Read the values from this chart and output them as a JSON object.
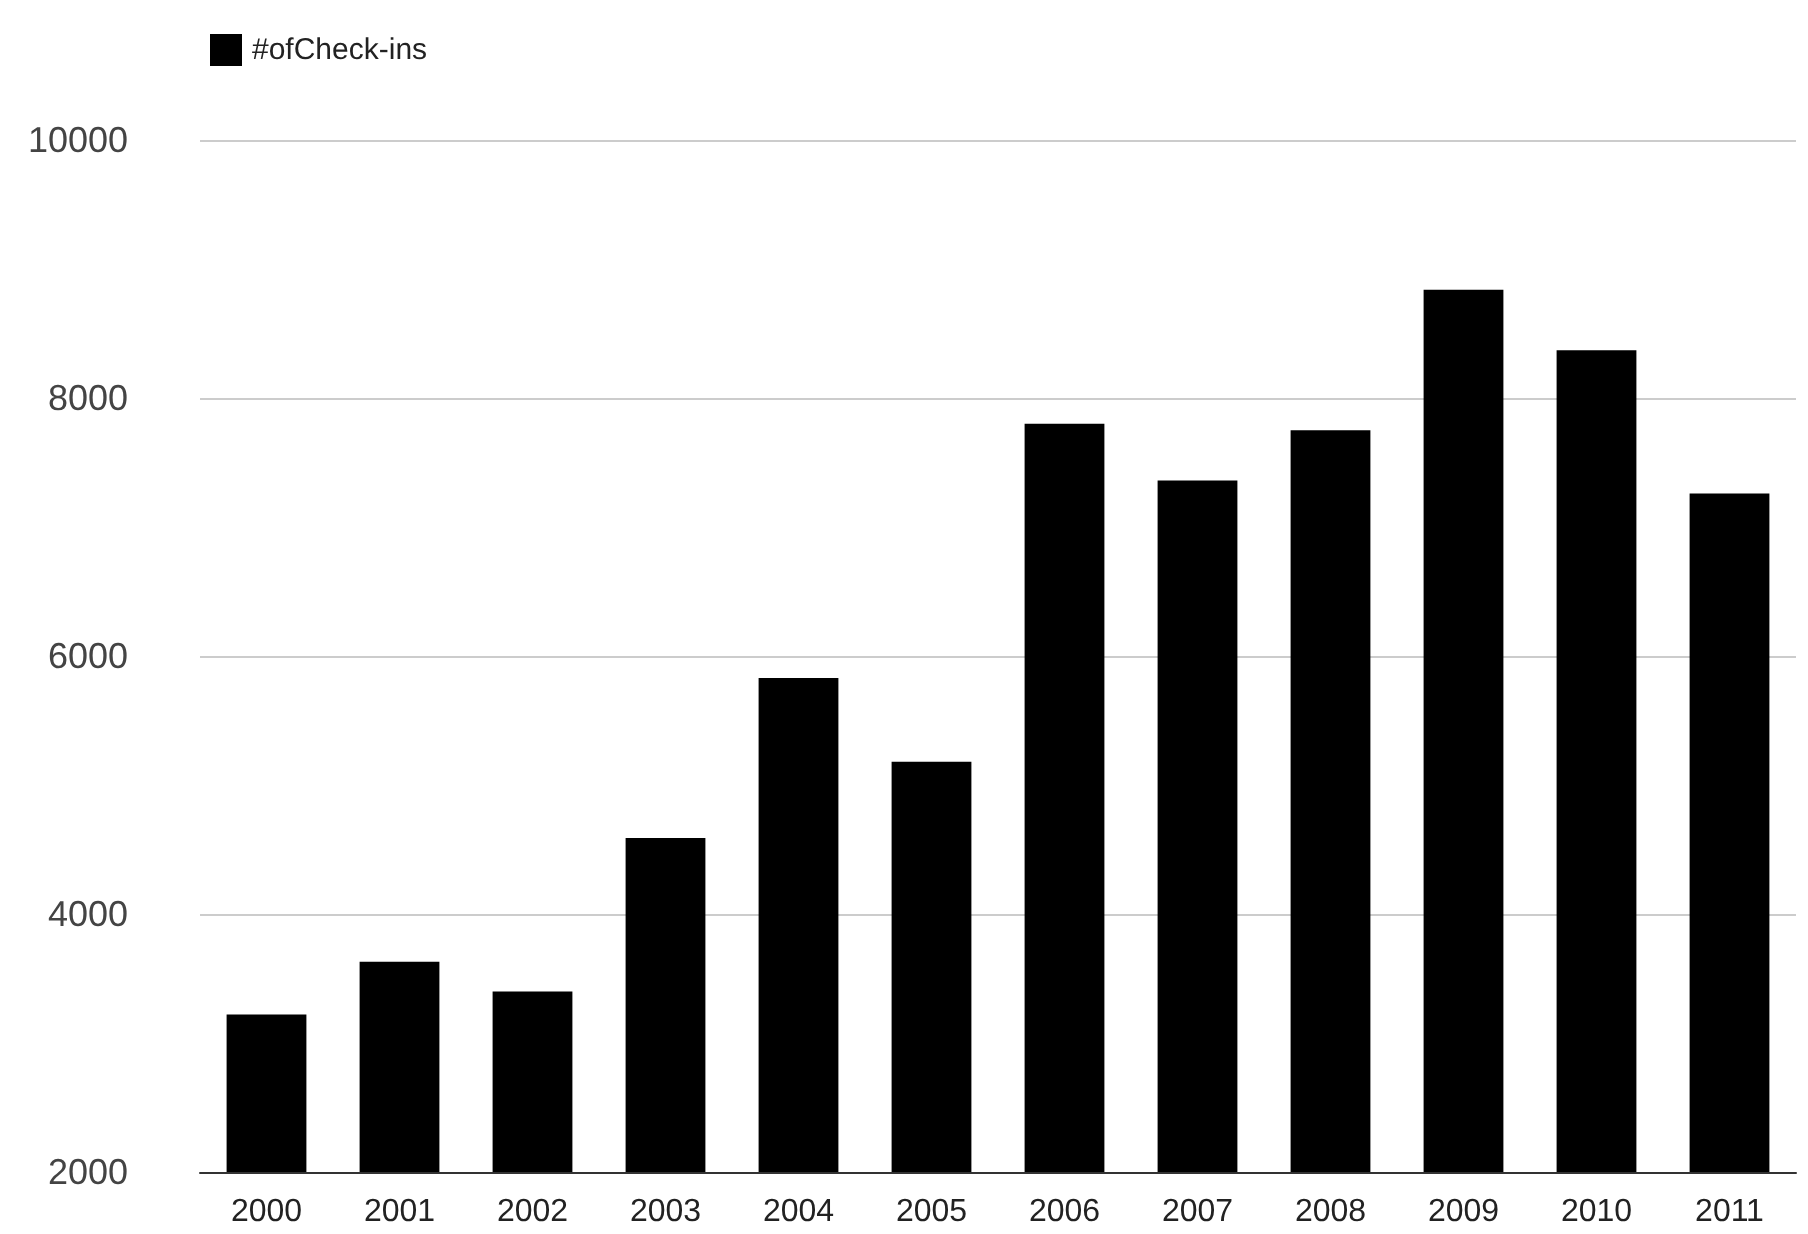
{
  "chart_data": {
    "type": "bar",
    "categories": [
      "2000",
      "2001",
      "2002",
      "2003",
      "2004",
      "2005",
      "2006",
      "2007",
      "2008",
      "2009",
      "2010",
      "2011"
    ],
    "series": [
      {
        "name": "#ofCheck-ins",
        "color": "#000000",
        "values": [
          3220,
          3630,
          3400,
          4590,
          5830,
          5180,
          7800,
          7360,
          7750,
          8840,
          8370,
          7260
        ]
      }
    ],
    "ylim": [
      2000,
      10000
    ],
    "yticks": [
      2000,
      4000,
      6000,
      8000,
      10000
    ],
    "grid": "y",
    "legend": "top left"
  }
}
